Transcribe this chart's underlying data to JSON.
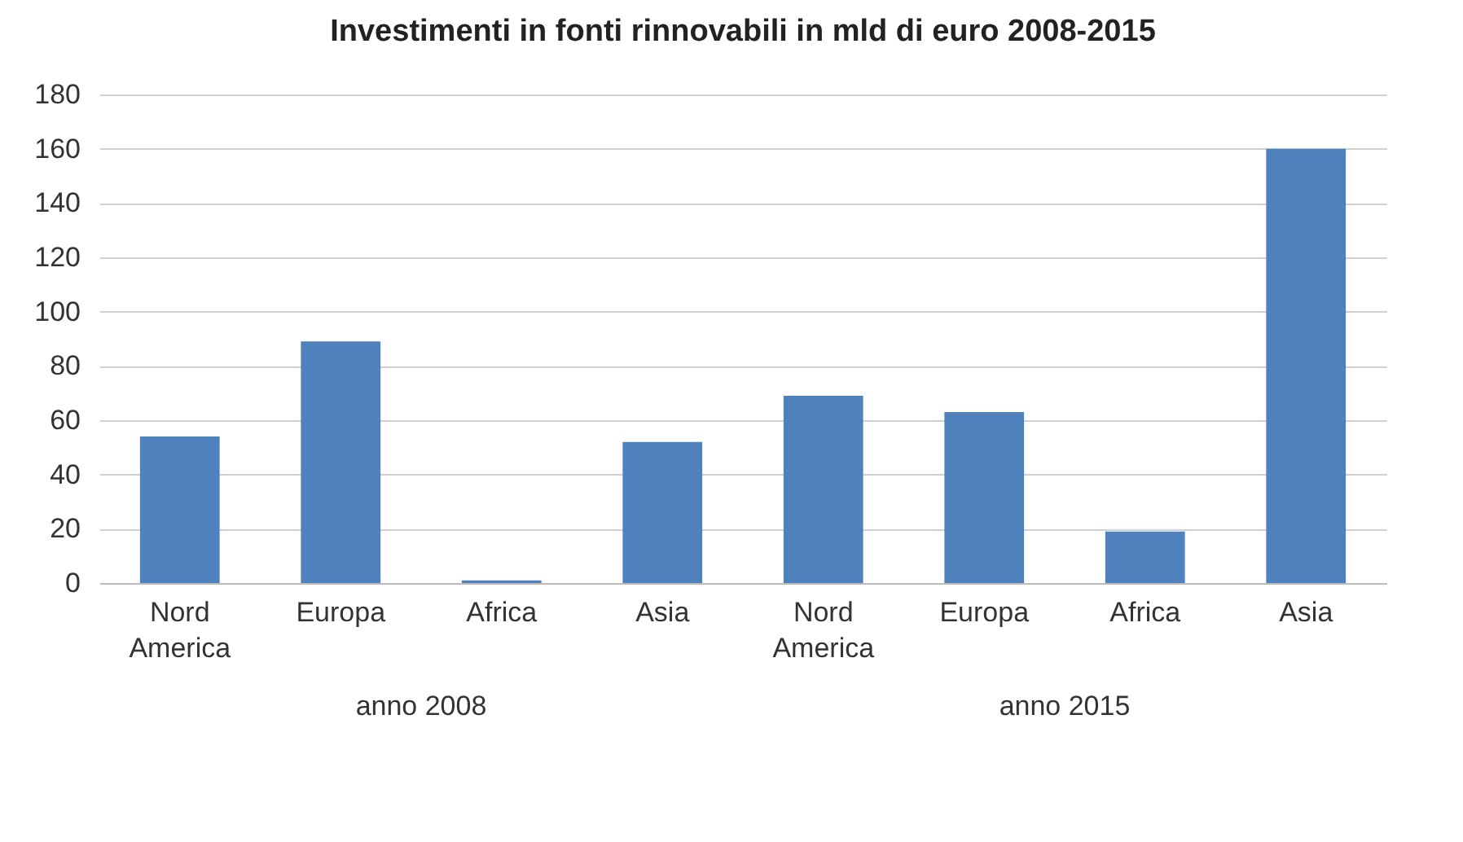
{
  "chart_data": {
    "type": "bar",
    "title": "Investimenti in fonti rinnovabili in mld di euro 2008-2015",
    "categories": [
      "Nord America",
      "Europa",
      "Africa",
      "Asia",
      "Nord America",
      "Europa",
      "Africa",
      "Asia"
    ],
    "values": [
      54,
      89,
      1,
      52,
      69,
      63,
      19,
      160
    ],
    "color": "#4f81bd",
    "ylim": [
      0,
      180
    ],
    "yticks": [
      0,
      20,
      40,
      60,
      80,
      100,
      120,
      140,
      160,
      180
    ],
    "grid": "y",
    "annotations": [
      "anno 2008",
      "anno 2015"
    ]
  }
}
